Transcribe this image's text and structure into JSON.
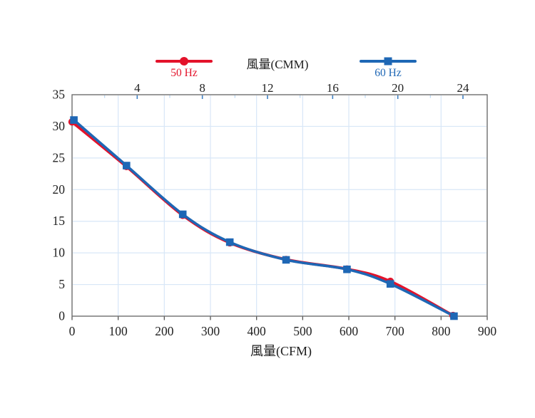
{
  "page": {
    "background": "#ffffff"
  },
  "chart_data": {
    "type": "line",
    "series": [
      {
        "name": "50 Hz",
        "color": "#e3122a",
        "marker": "circle",
        "points_cfm_pressure": [
          [
            0,
            30.7
          ],
          [
            118,
            23.65
          ],
          [
            240,
            15.95
          ],
          [
            342,
            11.6
          ],
          [
            464,
            8.95
          ],
          [
            596,
            7.45
          ],
          [
            690,
            5.5
          ],
          [
            826,
            0.1
          ]
        ]
      },
      {
        "name": "60 Hz",
        "color": "#1e67b5",
        "marker": "square",
        "points_cfm_pressure": [
          [
            4,
            31.0
          ],
          [
            118,
            23.8
          ],
          [
            240,
            16.1
          ],
          [
            342,
            11.7
          ],
          [
            464,
            8.9
          ],
          [
            596,
            7.4
          ],
          [
            690,
            5.1
          ],
          [
            828,
            0.0
          ]
        ]
      }
    ],
    "x_axis_bottom": {
      "label": "風量(CFM)",
      "min": 0,
      "max": 900,
      "ticks": [
        0,
        100,
        200,
        300,
        400,
        500,
        600,
        700,
        800,
        900
      ]
    },
    "x_axis_top": {
      "label": "風量(CMM)",
      "major_ticks": [
        4,
        8,
        12,
        16,
        20,
        24
      ],
      "minor_ticks": [
        2,
        6,
        10,
        14,
        18,
        22
      ],
      "cfm_per_cmm": 35.31
    },
    "y_axis": {
      "min": 0,
      "max": 35,
      "ticks": [
        0,
        5,
        10,
        15,
        20,
        25,
        30,
        35
      ]
    },
    "grid": {
      "vertical_every_cfm": 100,
      "horizontal_every": 5,
      "color": "#d8e7f7"
    },
    "frame_color": "#6e6e6e",
    "tick_color": "#555555",
    "tick_label_color": "#222222",
    "top_tick_major_color": "#3f80c4",
    "top_tick_minor_color": "#b9d7f2",
    "legend_position": "top"
  }
}
